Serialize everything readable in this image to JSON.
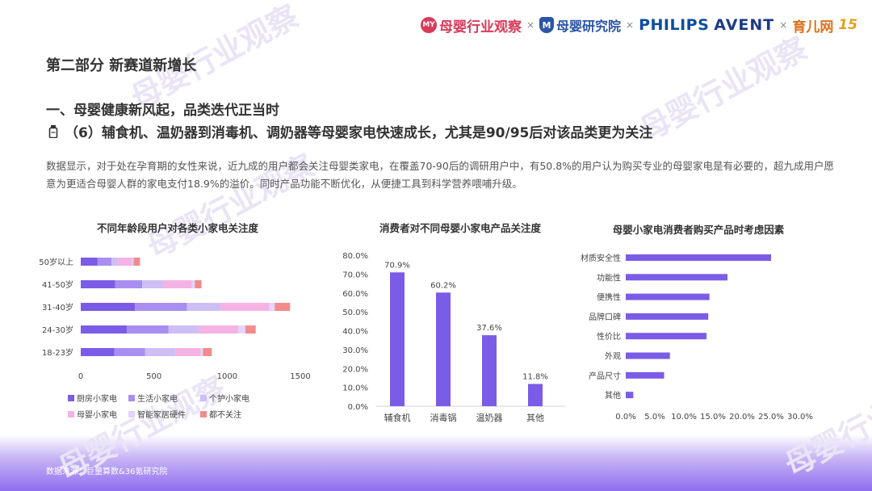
{
  "header": {
    "logos": [
      {
        "icon": "muying-circle-logo-icon",
        "text": "母婴行业观察",
        "color": "#d93a5a"
      },
      {
        "icon": "yanjiu-shield-logo-icon",
        "text": "母婴研究院",
        "color": "#2b55a8"
      },
      {
        "text": "PHILIPS",
        "color": "#0b4da2"
      },
      {
        "text": "AVENT",
        "color": "#1d3a86"
      },
      {
        "text": "育儿网",
        "color": "#e0701a"
      },
      {
        "text": "15",
        "color": "#e0a21a"
      }
    ],
    "separator": "×"
  },
  "section_title": "第二部分 新赛道新增长",
  "sub_title": "一、母婴健康新风起，品类迭代正当时",
  "headline": "（6）辅食机、温奶器到消毒机、调奶器等母婴家电快速成长，尤其是90/95后对该品类更为关注",
  "body_text": "数据显示，对于处在孕育期的女性来说，近九成的用户都会关注母婴类家电，在覆盖70-90后的调研用户中，有50.8%的用户认为购买专业的母婴家电是有必要的，超九成用户愿意为更适合母婴人群的家电支付18.9%的溢价。同时产品功能不断优化，从便捷工具到科学营养喂哺升级。",
  "source": "数据来源：巨量算数&36氪研究院",
  "colors": {
    "accent": "#7b5ce6",
    "kitchen": "#7b5ce6",
    "life": "#a88ef0",
    "care": "#cdbff6",
    "baby": "#f4b3e3",
    "smart": "#e2d4fb",
    "none": "#f28b8b"
  },
  "chart_data": [
    {
      "type": "bar",
      "orientation": "horizontal",
      "stacked": true,
      "title": "不同年龄段用户对各类小家电关注度",
      "categories": [
        "50岁以上",
        "41-50岁",
        "31-40岁",
        "24-30岁",
        "18-23岁"
      ],
      "series": [
        {
          "name": "厨房小家电",
          "values": [
            115,
            235,
            370,
            315,
            230
          ]
        },
        {
          "name": "生活小家电",
          "values": [
            95,
            185,
            355,
            285,
            210
          ]
        },
        {
          "name": "个护小家电",
          "values": [
            45,
            145,
            230,
            205,
            210
          ]
        },
        {
          "name": "母婴小家电",
          "values": [
            95,
            195,
            330,
            270,
            170
          ]
        },
        {
          "name": "智能家居硬件",
          "values": [
            10,
            20,
            40,
            50,
            15
          ]
        },
        {
          "name": "都不关注",
          "values": [
            45,
            45,
            105,
            70,
            60
          ]
        }
      ],
      "xlim": [
        0,
        1500
      ],
      "xticks": [
        0,
        500,
        1000,
        1500
      ],
      "legend": "bottom"
    },
    {
      "type": "bar",
      "title": "消费者对不同母婴小家电产品关注度",
      "categories": [
        "辅食机",
        "消毒锅",
        "温奶器",
        "其他"
      ],
      "values": [
        70.9,
        60.2,
        37.6,
        11.8
      ],
      "value_labels": [
        "70.9%",
        "60.2%",
        "37.6%",
        "11.8%"
      ],
      "ylim": [
        0,
        80
      ],
      "yticks": [
        "0.0%",
        "10.0%",
        "20.0%",
        "30.0%",
        "40.0%",
        "50.0%",
        "60.0%",
        "70.0%",
        "80.0%"
      ]
    },
    {
      "type": "bar",
      "orientation": "horizontal",
      "title": "母婴小家电消费者购买产品时考虑因素",
      "categories": [
        "材质安全性",
        "功能性",
        "便携性",
        "品牌口碑",
        "性价比",
        "外观",
        "产品尺寸",
        "其他"
      ],
      "values": [
        25.0,
        17.5,
        14.4,
        14.2,
        13.9,
        7.6,
        6.6,
        1.3
      ],
      "xlim": [
        0,
        30
      ],
      "xticks": [
        "0.0%",
        "5.0%",
        "10.0%",
        "15.0%",
        "20.0%",
        "25.0%",
        "30.0%"
      ]
    }
  ]
}
